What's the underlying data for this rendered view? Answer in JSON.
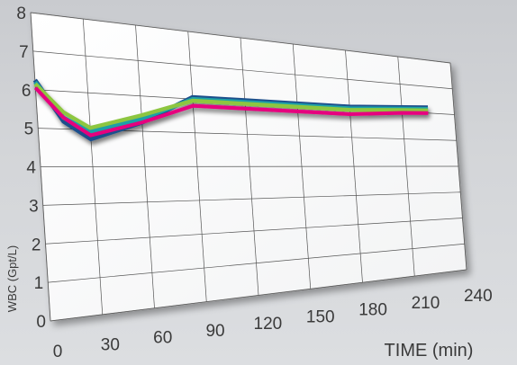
{
  "chart_data": {
    "type": "line",
    "title": "",
    "xlabel": "TIME (min)",
    "ylabel": "WBC (Gpt/L)",
    "xlim": [
      0,
      240
    ],
    "ylim": [
      0,
      8
    ],
    "x_ticks": [
      "0",
      "30",
      "60",
      "90",
      "120",
      "150",
      "180",
      "210",
      "240"
    ],
    "y_ticks": [
      "0",
      "1",
      "2",
      "3",
      "4",
      "5",
      "6",
      "7",
      "8"
    ],
    "grid": true,
    "legend": "none",
    "x": [
      0,
      15,
      30,
      60,
      90,
      120,
      150,
      180,
      210,
      225
    ],
    "series": [
      {
        "color": "#1d4f8c",
        "values": [
          6.25,
          5.2,
          4.75,
          5.25,
          6.05,
          6.05,
          6.05,
          6.05,
          6.15,
          6.2
        ]
      },
      {
        "color": "#1aa0a8",
        "values": [
          6.2,
          5.3,
          4.95,
          5.35,
          6.0,
          6.0,
          6.0,
          6.0,
          6.1,
          6.15
        ]
      },
      {
        "color": "#8dc63f",
        "values": [
          6.15,
          5.45,
          5.05,
          5.45,
          5.95,
          5.95,
          5.95,
          5.95,
          6.05,
          6.1
        ]
      },
      {
        "color": "#e6007e",
        "values": [
          6.05,
          5.3,
          4.85,
          5.25,
          5.8,
          5.8,
          5.8,
          5.8,
          5.95,
          6.0
        ]
      }
    ]
  }
}
